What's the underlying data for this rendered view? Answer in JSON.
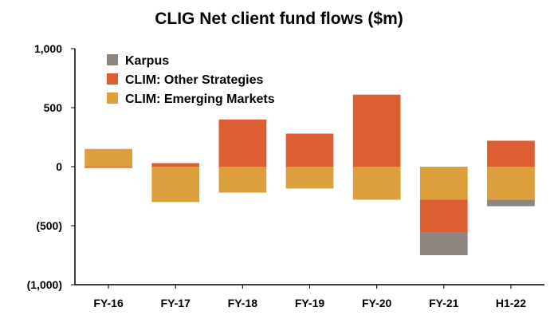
{
  "chart_data": {
    "type": "bar",
    "stacked": true,
    "title": "CLIG Net client fund flows ($m)",
    "categories": [
      "FY-16",
      "FY-17",
      "FY-18",
      "FY-19",
      "FY-20",
      "FY-21",
      "H1-22"
    ],
    "ylim": [
      -1000,
      1000
    ],
    "yticks": [
      {
        "value": 1000,
        "label": "1,000"
      },
      {
        "value": 500,
        "label": "500"
      },
      {
        "value": 0,
        "label": "0"
      },
      {
        "value": -500,
        "label": "(500)"
      },
      {
        "value": -1000,
        "label": "(1,000)"
      }
    ],
    "grid": false,
    "legend_position": "top-left",
    "series": [
      {
        "name": "CLIM: Emerging Markets",
        "color": "#dc9f3c",
        "values": [
          150,
          -300,
          -220,
          -185,
          -280,
          -280,
          -280
        ]
      },
      {
        "name": "CLIM: Other Strategies",
        "color": "#de5e33",
        "values": [
          -10,
          30,
          400,
          280,
          610,
          -280,
          220
        ]
      },
      {
        "name": "Karpus",
        "color": "#8c8580",
        "values": [
          0,
          0,
          0,
          0,
          0,
          -190,
          -55
        ]
      }
    ],
    "legend_order": [
      "Karpus",
      "CLIM: Other Strategies",
      "CLIM: Emerging Markets"
    ]
  }
}
